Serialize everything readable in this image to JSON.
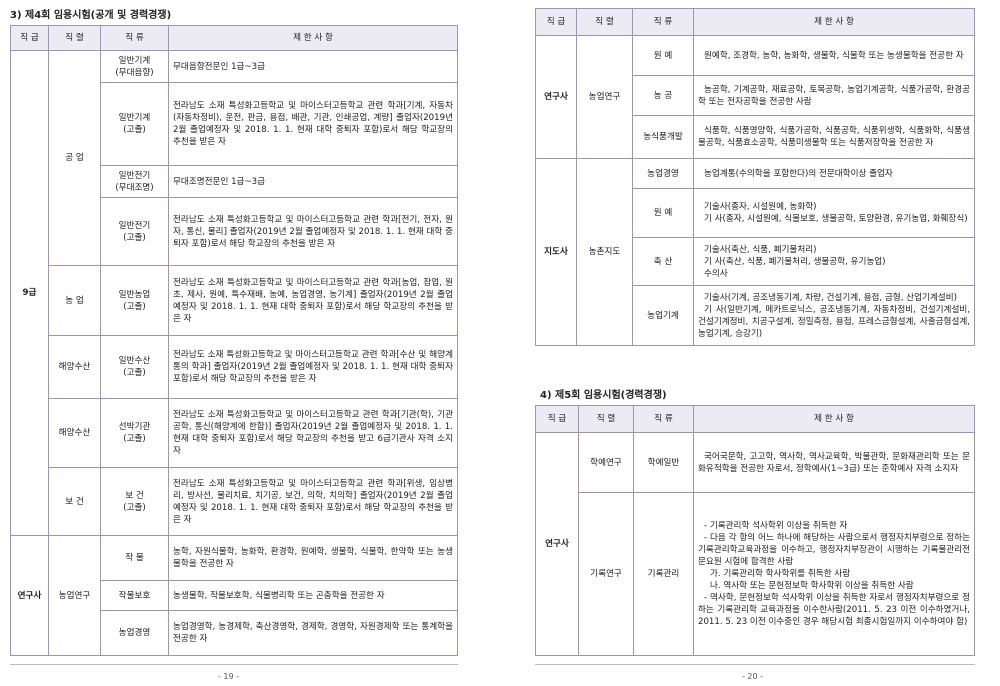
{
  "page19": {
    "heading": "3) 제4회 임용시험(공개 및 경력경쟁)",
    "header": [
      "직 급",
      "직 렬",
      "직 류",
      "제 한 사 항"
    ],
    "rows": [
      {
        "grade": "9급",
        "series": "공 업",
        "field": "일반기계\n(무대음향)",
        "restriction": "무대음향전문인 1급~3급"
      },
      {
        "field": "일반기계\n(고졸)",
        "restriction": "전라남도 소재 특성화고등학교 및 마이스터고등학교 관련 학과[기계, 자동차(자동차정비), 운전, 판금, 용접, 배관, 기관, 인쇄공업, 계량] 졸업자(2019년 2월 졸업예정자 및 2018. 1. 1. 현재 대학 중퇴자 포함)로서 해당 학교장의 추천을 받은 자"
      },
      {
        "field": "일반전기\n(무대조명)",
        "restriction": "무대조명전문인 1급~3급"
      },
      {
        "field": "일반전기\n(고졸)",
        "restriction": "전라남도 소재 특성화고등학교 및 마이스터고등학교 관련 학과[전기, 전자, 원자, 통신, 물리] 졸업자(2019년 2월 졸업예정자 및 2018. 1. 1. 현재 대학 중퇴자 포함)로서 해당 학교장의 추천을 받은 자"
      },
      {
        "series": "농 업",
        "field": "일반농업\n(고졸)",
        "restriction": "전라남도 소재 특성화고등학교 및 마이스터고등학교 관련 학과[농업, 잠업, 원초, 제사, 원예, 특수재배, 농예, 농업경영, 농기계] 졸업자(2019년 2월 졸업예정자 및 2018. 1. 1. 현재 대학 중퇴자 포함)로서 해당 학교장의 추천을 받은 자"
      },
      {
        "series": "해양수산",
        "field": "일반수산\n(고졸)",
        "restriction": "전라남도 소재 특성화고등학교 및 마이스터고등학교 관련 학과[수산 및 해양계통의 학과] 졸업자(2019년 2월 졸업예정자 및 2018. 1. 1. 현재 대학 중퇴자 포함)로서 해당 학교장의 추천을 받은 자"
      },
      {
        "series": "해양수산",
        "field": "선박기관\n(고졸)",
        "restriction": "전라남도 소재 특성화고등학교 및 마이스터고등학교 관련 학과[기관(학), 기관공학, 통신(해양계에 한함)] 졸업자(2019년 2월 졸업예정자 및 2018. 1. 1. 현재 대학 중퇴자 포함)로서 해당 학교장의 추천을 받고 6급기관사 자격 소지 자"
      },
      {
        "series": "보 건",
        "field": "보 건\n(고졸)",
        "restriction": "전라남도 소재 특성화고등학교 및 마이스터고등학교 관련 학과[위생, 임상병리, 방사선, 물리치료, 치기공, 보건, 의학, 치의학] 졸업자(2019년 2월 졸업예정자 및 2018. 1. 1. 현재 대학 중퇴자 포함)로서 해당 학교장의 추천을 받은 자"
      },
      {
        "grade": "연구사",
        "series": "농업연구",
        "field": "작 물",
        "restriction": "농학, 자원식물학, 농화학, 환경학, 원예학, 생물학, 식물학, 한약학 또는 농생물학을 전공한 자"
      },
      {
        "field": "작물보호",
        "restriction": "농생물학, 작물보호학, 식물병리학 또는 곤충학을 전공한 자"
      },
      {
        "field": "농업경영",
        "restriction": "농업경영학, 농경제학, 축산경영학, 경제학, 경영학, 자원경제학 또는 통계학을 전공한 자"
      }
    ],
    "page_number": "- 19 -"
  },
  "page20": {
    "header": [
      "직 급",
      "직 렬",
      "직 류",
      "제 한 사 항"
    ],
    "rows": [
      {
        "grade": "연구사",
        "series": "농업연구",
        "field": "원 예",
        "restriction": [
          "원예학, 조경학, 농학, 농화학, 생물학, 식물학 또는 농생물학을 전공한 자"
        ]
      },
      {
        "field": "농 공",
        "restriction": [
          "농공학, 기계공학, 재료공학, 토목공학, 농업기계공학, 식품가공학, 환경공학 또는 전자공학을 전공한 사람"
        ]
      },
      {
        "field": "농식품개발",
        "restriction": [
          "식품학, 식품영양학, 식품가공학, 식품공학, 식품위생학, 식품화학, 식품생물공학, 식품효소공학, 식품미생물학 또는 식품저장학을 전공한 자"
        ]
      },
      {
        "grade": "지도사",
        "series": "농촌지도",
        "field": "농업경영",
        "restriction": [
          "농업계통(수의학을 포함한다)의 전문대학이상 졸업자"
        ]
      },
      {
        "field": "원 예",
        "restriction": [
          "기술사(종자, 시설원예, 농화학)",
          "기 사(종자, 시설원예, 식물보호, 생물공학, 토양환경, 유기농업, 화훼장식)"
        ]
      },
      {
        "field": "축 산",
        "restriction": [
          "기술사(축산, 식품, 폐기물처리)",
          "기 사(축산, 식품, 폐기물처리, 생물공학, 유기농업)",
          "수의사"
        ]
      },
      {
        "field": "농업기계",
        "restriction": [
          "기술사(기계, 공조냉동기계, 차량, 건설기계, 용접, 금형, 산업기계설비)",
          "기 사(일반기계, 메카트로닉스, 공조냉동기계, 자동차정비, 건설기계설비, 건설기계정비, 치공구설계, 정밀측정, 용접, 프레스금형설계, 사출금형설계, 농업기계, 승강기)"
        ]
      }
    ],
    "heading2": "4) 제5회 임용시험(경력경쟁)",
    "header2": [
      "직 급",
      "직 렬",
      "직 류",
      "제 한 사 항"
    ],
    "rows2": [
      {
        "grade": "연구사",
        "series": "학예연구",
        "field": "학예일반",
        "restriction": [
          "국어국문학, 고고학, 역사학, 역사교육학, 박물관학, 문화재관리학 또는 문화유적학을 전공한 자로서, 정학예사(1~3급) 또는 준학예사 자격 소지자"
        ]
      },
      {
        "series": "기록연구",
        "field": "기록관리",
        "restriction": [
          "- 기록관리학 석사학위 이상을 취득한 자",
          "- 다음 각 항의 어느 하나에 해당하는 사람으로서 행정자치부령으로 정하는 기록관리학교육과정을 이수하고, 행정자치부장관이 시행하는 기록물관리전문요원 시험에 합격한 사람",
          "가. 기록관리학 학사학위를 취득한 사람",
          "나. 역사학 또는 문헌정보학 학사학위 이상을 취득한 사람",
          "- 역사학, 문헌정보학 석사학위 이상을 취득한 자로서 행정자치부령으로 정하는 기록관리학 교육과정을 이수한사람(2011. 5. 23 이전 이수하였거나, 2011. 5. 23 이전 이수중인 경우 해당시험 최종시험일까지 이수하여야 함)"
        ]
      }
    ],
    "page_number": "- 20 -"
  }
}
